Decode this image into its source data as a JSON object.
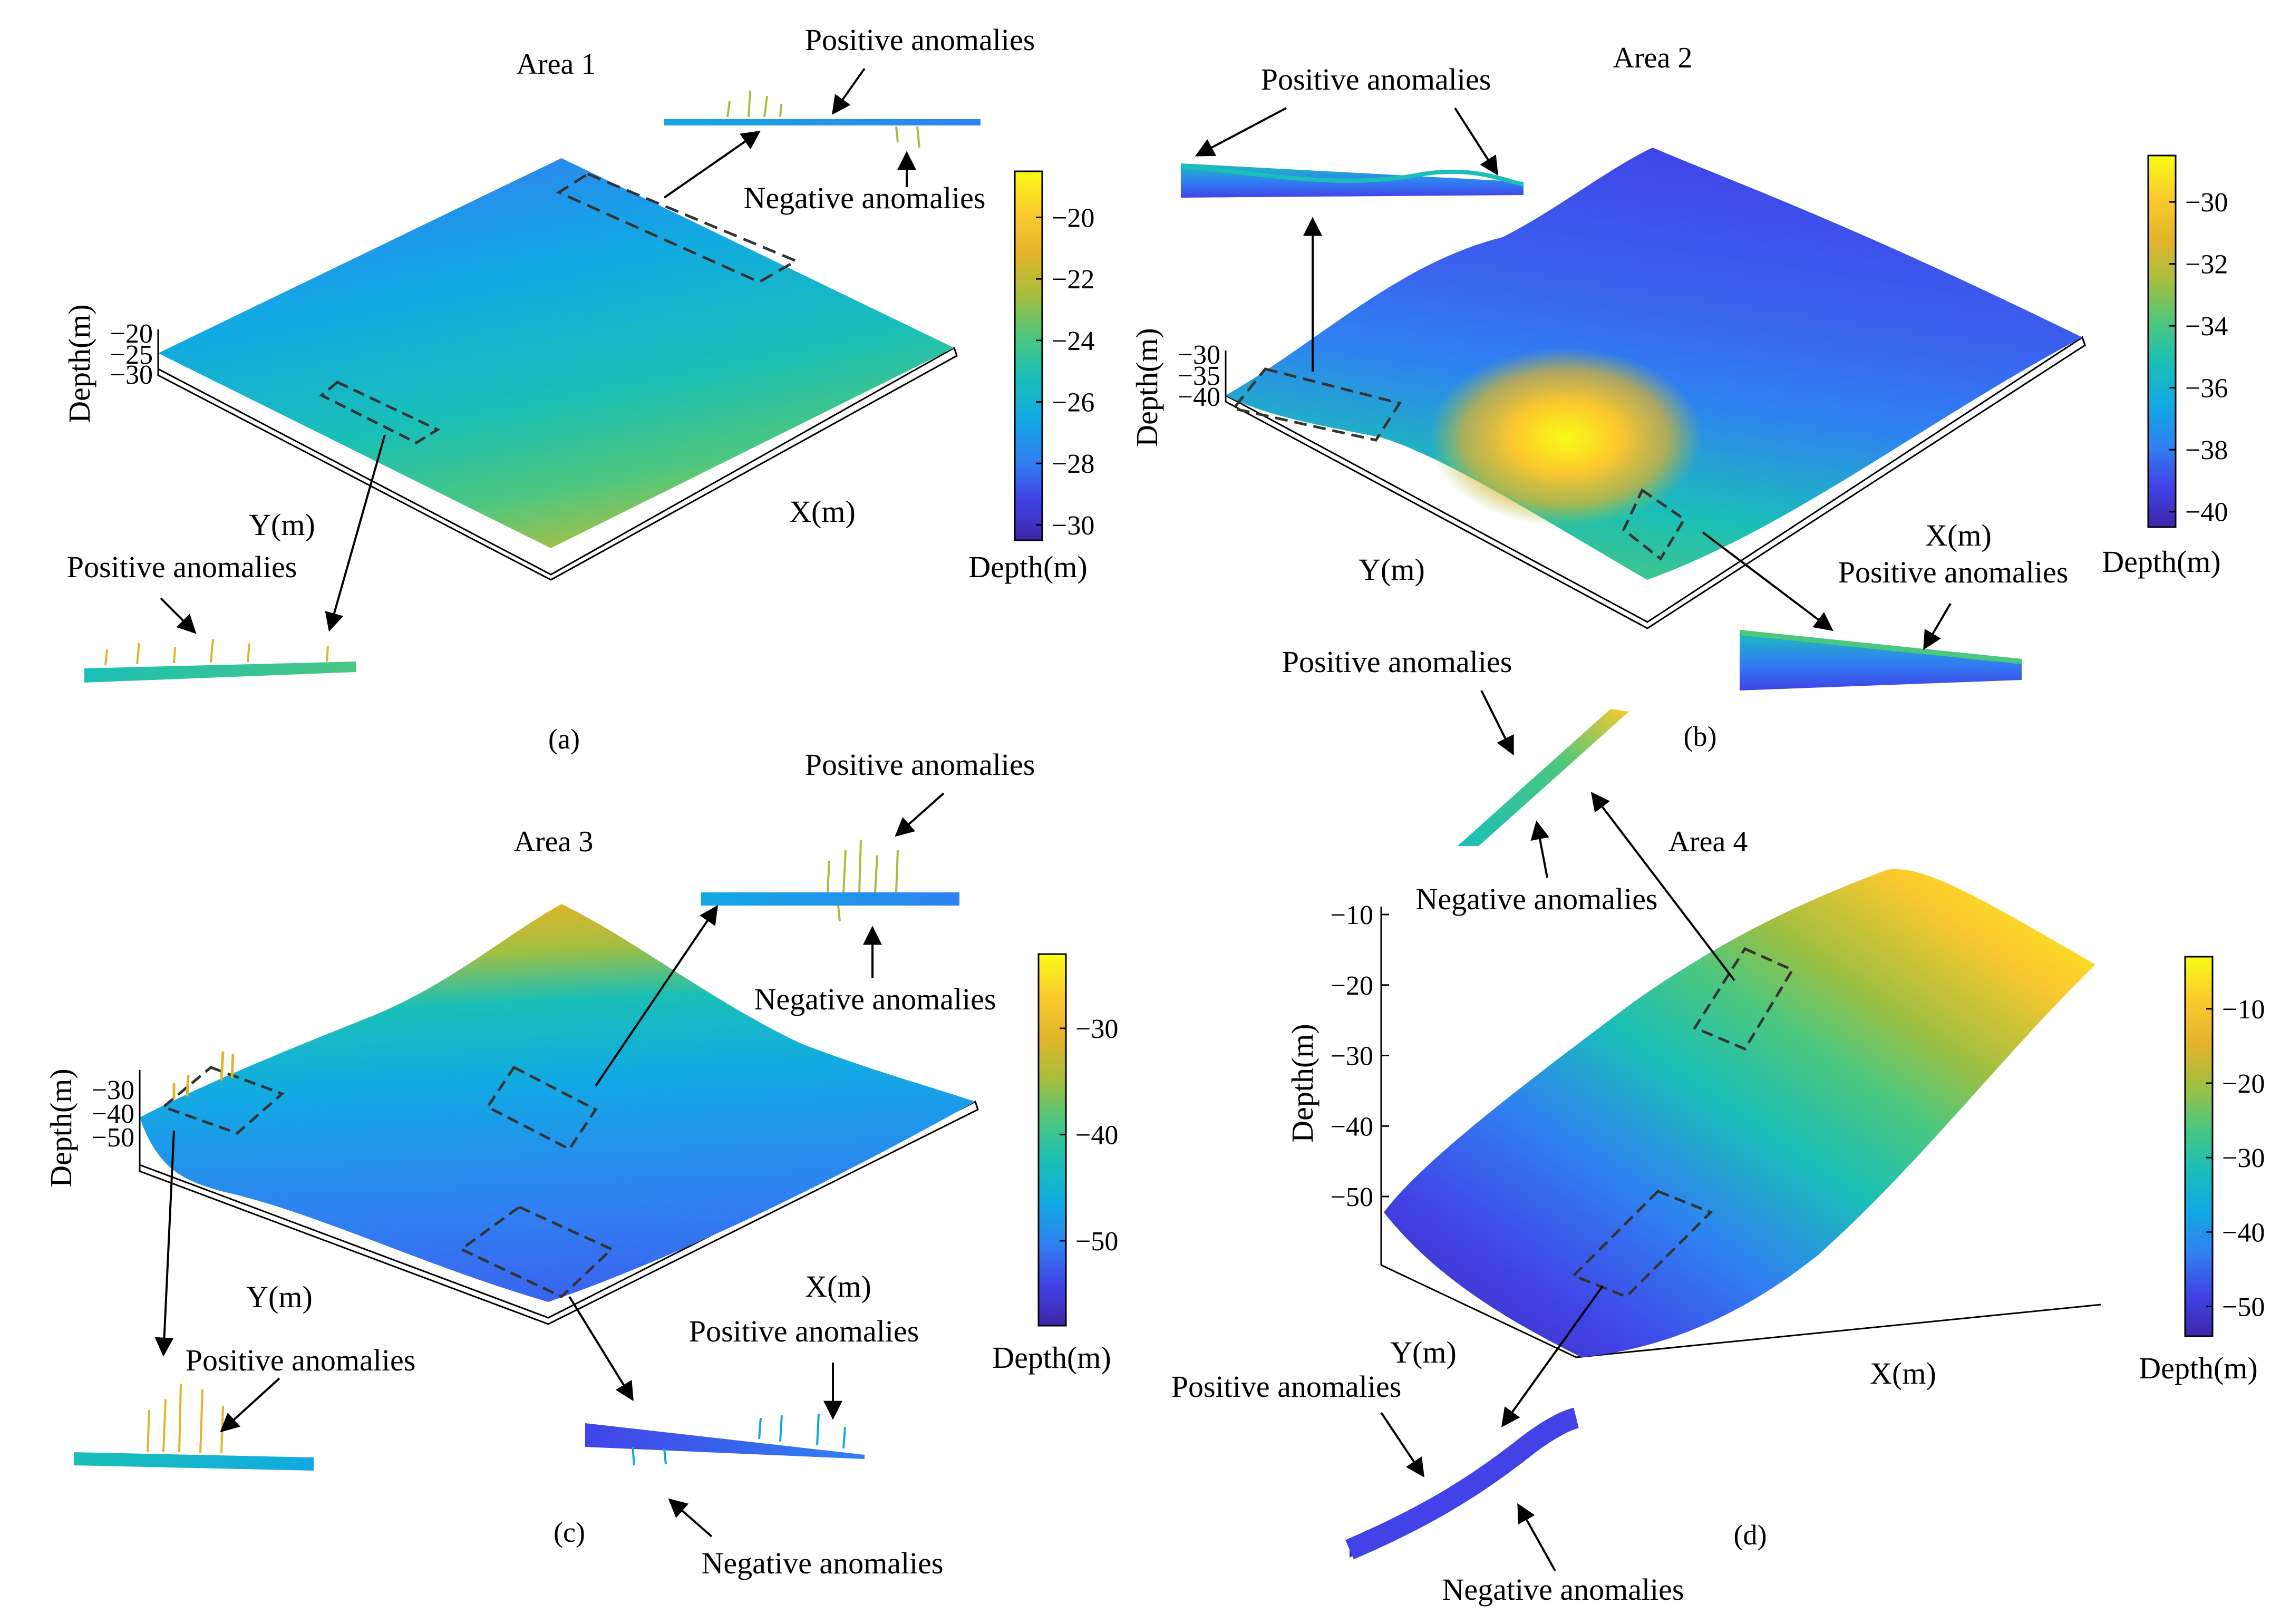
{
  "figure": {
    "colors": {
      "parula": [
        "#3e26a8",
        "#4143e7",
        "#2f82f1",
        "#12a9e3",
        "#1abfb7",
        "#4bc77f",
        "#a3bf3f",
        "#e2b42b",
        "#fbc82e",
        "#f9fb15"
      ],
      "box_stroke": "#333333",
      "base_fill": "#ffffff"
    },
    "panels": [
      {
        "caption": "(a)",
        "title": "Area 1",
        "axis_x_label": "X(m)",
        "axis_y_label": "Y(m)",
        "axis_z_label": "Depth(m)",
        "z_ticks": [
          "−20",
          "−25",
          "−30"
        ],
        "colorbar_label": "Depth(m)",
        "colorbar_ticks": [
          "−20",
          "−22",
          "−24",
          "−26",
          "−28",
          "−30"
        ],
        "annotations": {
          "a1": "Positive anomalies",
          "a2": "Negative anomalies",
          "a3": "Positive anomalies"
        }
      },
      {
        "caption": "(b)",
        "title": "Area 2",
        "axis_x_label": "X(m)",
        "axis_y_label": "Y(m)",
        "axis_z_label": "Depth(m)",
        "z_ticks": [
          "−30",
          "−35",
          "−40"
        ],
        "colorbar_label": "Depth(m)",
        "colorbar_ticks": [
          "−30",
          "−32",
          "−34",
          "−36",
          "−38",
          "−40"
        ],
        "annotations": {
          "a1": "Positive anomalies",
          "a2": "Positive anomalies"
        }
      },
      {
        "caption": "(c)",
        "title": "Area 3",
        "axis_x_label": "X(m)",
        "axis_y_label": "Y(m)",
        "axis_z_label": "Depth(m)",
        "z_ticks": [
          "−30",
          "−40",
          "−50"
        ],
        "colorbar_label": "Depth(m)",
        "colorbar_ticks": [
          "−30",
          "−40",
          "−50"
        ],
        "annotations": {
          "a1": "Positive anomalies",
          "a2": "Negative anomalies",
          "a3": "Positive anomalies",
          "a4": "Positive anomalies",
          "a5": "Negative anomalies"
        }
      },
      {
        "caption": "(d)",
        "title": "Area 4",
        "axis_x_label": "X(m)",
        "axis_y_label": "Y(m)",
        "axis_z_label": "Depth(m)",
        "z_ticks": [
          "−10",
          "−20",
          "−30",
          "−40",
          "−50"
        ],
        "colorbar_label": "Depth(m)",
        "colorbar_ticks": [
          "−10",
          "−20",
          "−30",
          "−40",
          "−50"
        ],
        "annotations": {
          "a1": "Positive anomalies",
          "a2": "Negative anomalies",
          "a3": "Positive anomalies",
          "a4": "Negative anomalies"
        }
      }
    ]
  },
  "chart_data": [
    {
      "type": "scatter",
      "title": "Area 1",
      "xlabel": "X(m)",
      "ylabel": "Y(m)",
      "zlabel": "Depth(m)",
      "zlim": [
        -30,
        -20
      ],
      "colorbar": {
        "label": "Depth(m)",
        "range": [
          -30.5,
          -18.5
        ],
        "ticks": [
          -20,
          -22,
          -24,
          -26,
          -28,
          -30
        ]
      }
    },
    {
      "type": "scatter",
      "title": "Area 2",
      "xlabel": "X(m)",
      "ylabel": "Y(m)",
      "zlabel": "Depth(m)",
      "zlim": [
        -40,
        -30
      ],
      "colorbar": {
        "label": "Depth(m)",
        "range": [
          -40.5,
          -28.5
        ],
        "ticks": [
          -30,
          -32,
          -34,
          -36,
          -38,
          -40
        ]
      }
    },
    {
      "type": "scatter",
      "title": "Area 3",
      "xlabel": "X(m)",
      "ylabel": "Y(m)",
      "zlabel": "Depth(m)",
      "zlim": [
        -50,
        -30
      ],
      "colorbar": {
        "label": "Depth(m)",
        "range": [
          -58,
          -23
        ],
        "ticks": [
          -30,
          -40,
          -50
        ]
      }
    },
    {
      "type": "scatter",
      "title": "Area 4",
      "xlabel": "X(m)",
      "ylabel": "Y(m)",
      "zlabel": "Depth(m)",
      "zlim": [
        -55,
        -10
      ],
      "colorbar": {
        "label": "Depth(m)",
        "range": [
          -54,
          -3
        ],
        "ticks": [
          -10,
          -20,
          -30,
          -40,
          -50
        ]
      }
    }
  ]
}
